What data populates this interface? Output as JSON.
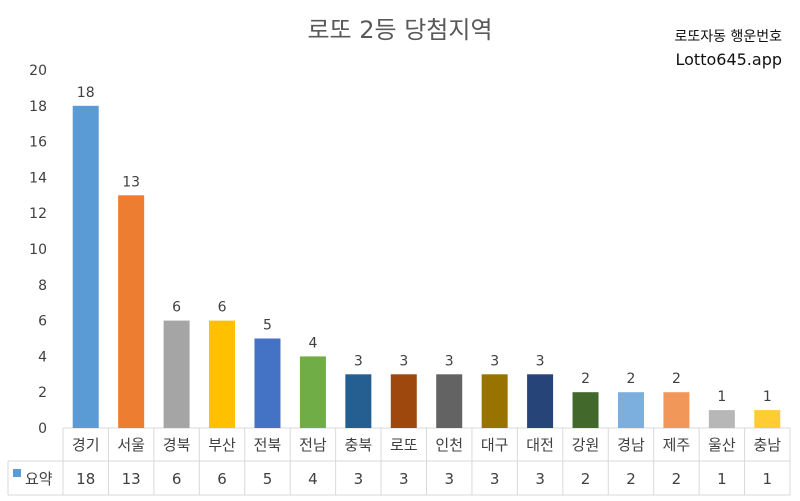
{
  "brand": {
    "line1": "로또자동 행운번호",
    "line2": "Lotto645.app"
  },
  "chart_data": {
    "type": "bar",
    "title": "로또 2등 당첨지역",
    "categories": [
      "경기",
      "서울",
      "경북",
      "부산",
      "전북",
      "전남",
      "충북",
      "로또",
      "인천",
      "대구",
      "대전",
      "강원",
      "경남",
      "제주",
      "울산",
      "충남"
    ],
    "series": [
      {
        "name": "요약",
        "values": [
          18,
          13,
          6,
          6,
          5,
          4,
          3,
          3,
          3,
          3,
          3,
          2,
          2,
          2,
          1,
          1
        ]
      }
    ],
    "bar_colors": [
      "#5b9bd5",
      "#ed7d31",
      "#a5a5a5",
      "#ffc000",
      "#4472c4",
      "#70ad47",
      "#255e91",
      "#9e480e",
      "#636363",
      "#997300",
      "#264478",
      "#43682b",
      "#7cafdd",
      "#f1975a",
      "#b7b7b7",
      "#ffcd33"
    ],
    "ylim": [
      0,
      20
    ],
    "yticks": [
      0,
      2,
      4,
      6,
      8,
      10,
      12,
      14,
      16,
      18,
      20
    ],
    "grid": false,
    "legend": "data-table"
  }
}
